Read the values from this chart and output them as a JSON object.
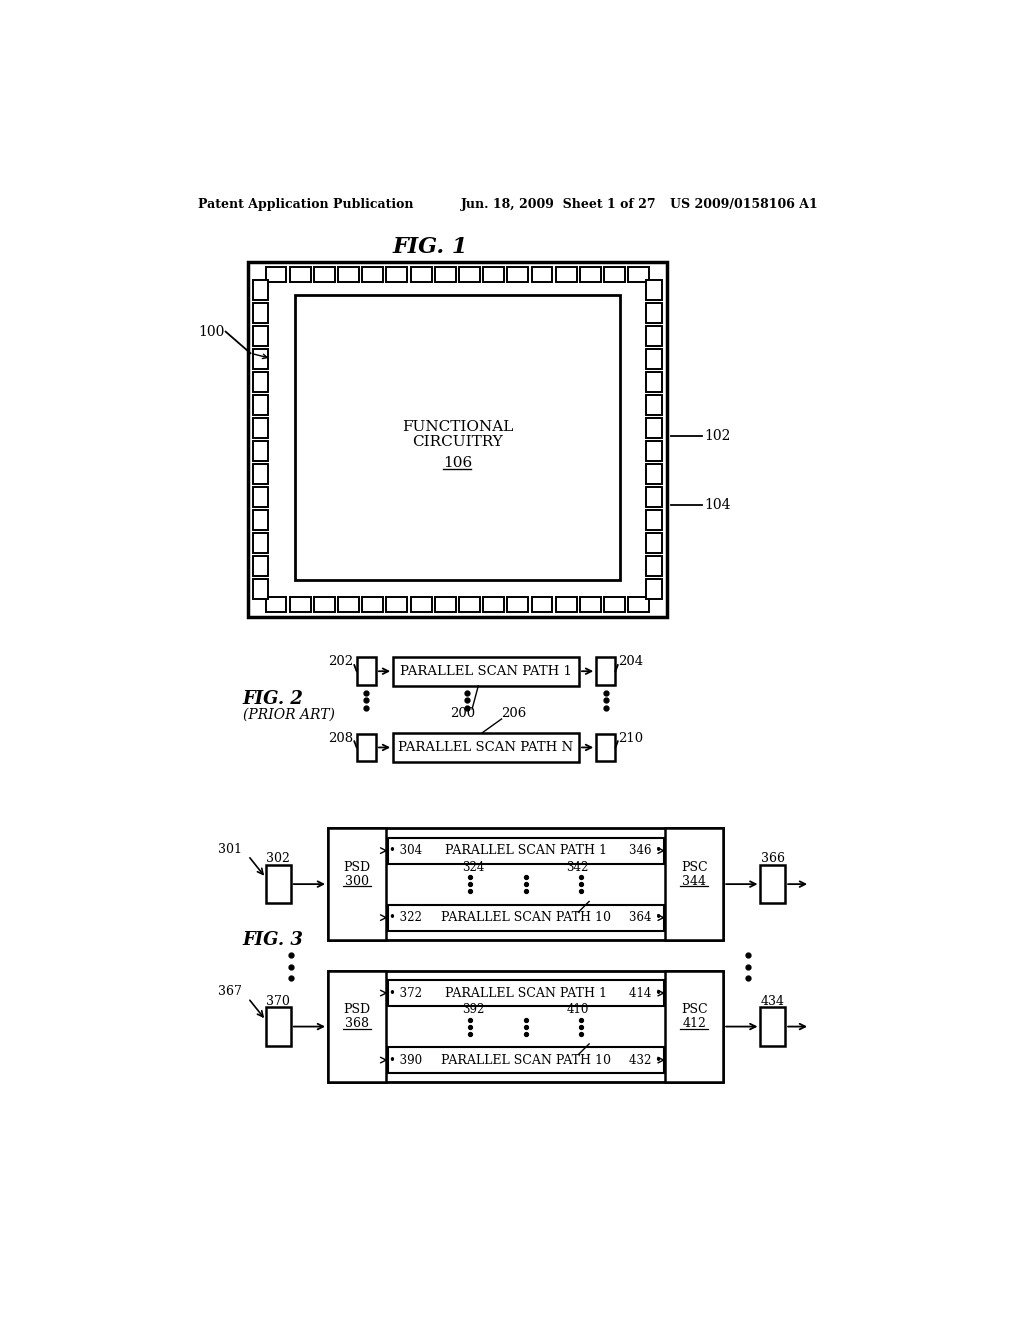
{
  "bg_color": "#ffffff",
  "header_left": "Patent Application Publication",
  "header_mid": "Jun. 18, 2009  Sheet 1 of 27",
  "header_right": "US 2009/0158106 A1",
  "fig1_title": "FIG. 1",
  "fig2_title": "FIG. 2",
  "fig2_subtitle": "(PRIOR ART)",
  "fig3_title": "FIG. 3",
  "chip_label": "100",
  "chip_inner_label1": "FUNCTIONAL",
  "chip_inner_label2": "CIRCUITRY",
  "chip_inner_label3": "106",
  "chip_label_102": "102",
  "chip_label_104": "104",
  "fig2_label_200": "200",
  "fig2_label_206": "206",
  "fig2_box1_label": "PARALLEL SCAN PATH 1",
  "fig2_box2_label": "PARALLEL SCAN PATH N",
  "fig2_in1": "202",
  "fig2_out1": "204",
  "fig2_in2": "208",
  "fig2_out2": "210",
  "fig3_top_psd_label": "PSD",
  "fig3_top_psd_num": "300",
  "fig3_top_psc_label": "PSC",
  "fig3_top_psc_num": "344",
  "fig3_top_path1": "PARALLEL SCAN PATH 1",
  "fig3_top_path10": "PARALLEL SCAN PATH 10",
  "fig3_top_in_arrow": "301",
  "fig3_top_in_box": "302",
  "fig3_top_out_arrow": "366",
  "fig3_top_label_304": "304",
  "fig3_top_label_322": "322",
  "fig3_top_label_324": "324",
  "fig3_top_label_342": "342",
  "fig3_top_label_346": "346",
  "fig3_top_label_364": "364",
  "fig3_bot_psd_label": "PSD",
  "fig3_bot_psd_num": "368",
  "fig3_bot_psc_label": "PSC",
  "fig3_bot_psc_num": "412",
  "fig3_bot_path1": "PARALLEL SCAN PATH 1",
  "fig3_bot_path10": "PARALLEL SCAN PATH 10",
  "fig3_bot_in_arrow": "367",
  "fig3_bot_in_box": "370",
  "fig3_bot_out_arrow": "434",
  "fig3_bot_label_372": "372",
  "fig3_bot_label_390": "390",
  "fig3_bot_label_392": "392",
  "fig3_bot_label_410": "410",
  "fig3_bot_label_414": "414",
  "fig3_bot_label_432": "432"
}
